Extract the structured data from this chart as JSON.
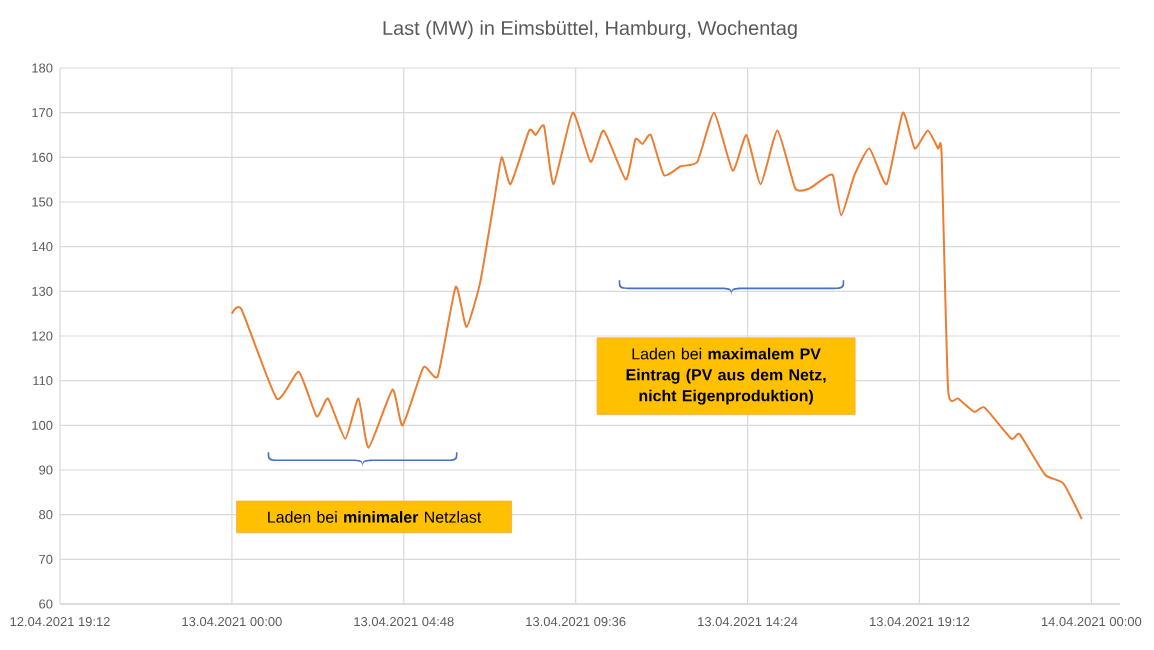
{
  "chart_data": {
    "type": "line",
    "title": "Last (MW) in Eimsbüttel, Hamburg, Wochentag",
    "x": [
      "2021-04-13T00:00",
      "2021-04-13T00:16",
      "2021-04-13T01:15",
      "2021-04-13T01:52",
      "2021-04-13T02:22",
      "2021-04-13T02:41",
      "2021-04-13T03:10",
      "2021-04-13T03:32",
      "2021-04-13T03:49",
      "2021-04-13T04:29",
      "2021-04-13T04:46",
      "2021-04-13T05:21",
      "2021-04-13T05:45",
      "2021-04-13T06:15",
      "2021-04-13T06:33",
      "2021-04-13T06:56",
      "2021-04-13T07:19",
      "2021-04-13T07:32",
      "2021-04-13T07:47",
      "2021-04-13T08:18",
      "2021-04-13T08:29",
      "2021-04-13T08:43",
      "2021-04-13T08:59",
      "2021-04-13T09:31",
      "2021-04-13T10:01",
      "2021-04-13T10:23",
      "2021-04-13T11:00",
      "2021-04-13T11:16",
      "2021-04-13T11:28",
      "2021-04-13T11:42",
      "2021-04-13T12:04",
      "2021-04-13T12:32",
      "2021-04-13T13:00",
      "2021-04-13T13:28",
      "2021-04-13T13:59",
      "2021-04-13T14:22",
      "2021-04-13T14:46",
      "2021-04-13T15:14",
      "2021-04-13T15:44",
      "2021-04-13T16:07",
      "2021-04-13T16:29",
      "2021-04-13T16:47",
      "2021-04-13T17:01",
      "2021-04-13T17:23",
      "2021-04-13T17:48",
      "2021-04-13T18:17",
      "2021-04-13T18:44",
      "2021-04-13T19:04",
      "2021-04-13T19:26",
      "2021-04-13T19:43",
      "2021-04-13T19:49",
      "2021-04-13T20:00",
      "2021-04-13T20:17",
      "2021-04-13T20:44",
      "2021-04-13T21:01",
      "2021-04-13T21:46",
      "2021-04-13T22:00",
      "2021-04-13T22:42",
      "2021-04-13T23:13",
      "2021-04-13T23:44"
    ],
    "series": [
      {
        "color": "#ed7d31",
        "values": [
          125,
          126,
          106,
          112,
          102,
          106,
          97,
          106,
          95,
          108,
          100,
          113,
          111,
          131,
          122,
          132,
          150,
          160,
          154,
          166,
          165,
          167,
          154,
          170,
          159,
          166,
          155,
          164,
          163,
          165,
          156,
          158,
          159,
          170,
          157,
          165,
          154,
          166,
          153,
          153,
          155,
          156,
          147,
          156,
          162,
          154,
          170,
          162,
          166,
          162,
          161,
          108,
          106,
          103,
          104,
          97,
          98,
          89,
          87,
          79
        ]
      }
    ],
    "xlim": [
      "2021-04-12T19:12",
      "2021-04-14T00:48"
    ],
    "xticks": [
      {
        "value": "2021-04-12T19:12",
        "label": "12.04.2021 19:12"
      },
      {
        "value": "2021-04-13T00:00",
        "label": "13.04.2021 00:00"
      },
      {
        "value": "2021-04-13T04:48",
        "label": "13.04.2021 04:48"
      },
      {
        "value": "2021-04-13T09:36",
        "label": "13.04.2021 09:36"
      },
      {
        "value": "2021-04-13T14:24",
        "label": "13.04.2021 14:24"
      },
      {
        "value": "2021-04-13T19:12",
        "label": "13.04.2021 19:12"
      },
      {
        "value": "2021-04-14T00:00",
        "label": "14.04.2021 00:00"
      }
    ],
    "ylim": [
      60,
      180
    ],
    "yticks": [
      60,
      70,
      80,
      90,
      100,
      110,
      120,
      130,
      140,
      150,
      160,
      170,
      180
    ],
    "grid": true,
    "marker": "none",
    "line_style": "solid",
    "annotations": [
      "Laden bei **minimaler** Netzlast",
      "Laden bei **maximalem PV Eintrag (PV aus dem Netz, nicht Eigenproduktion)**"
    ]
  }
}
